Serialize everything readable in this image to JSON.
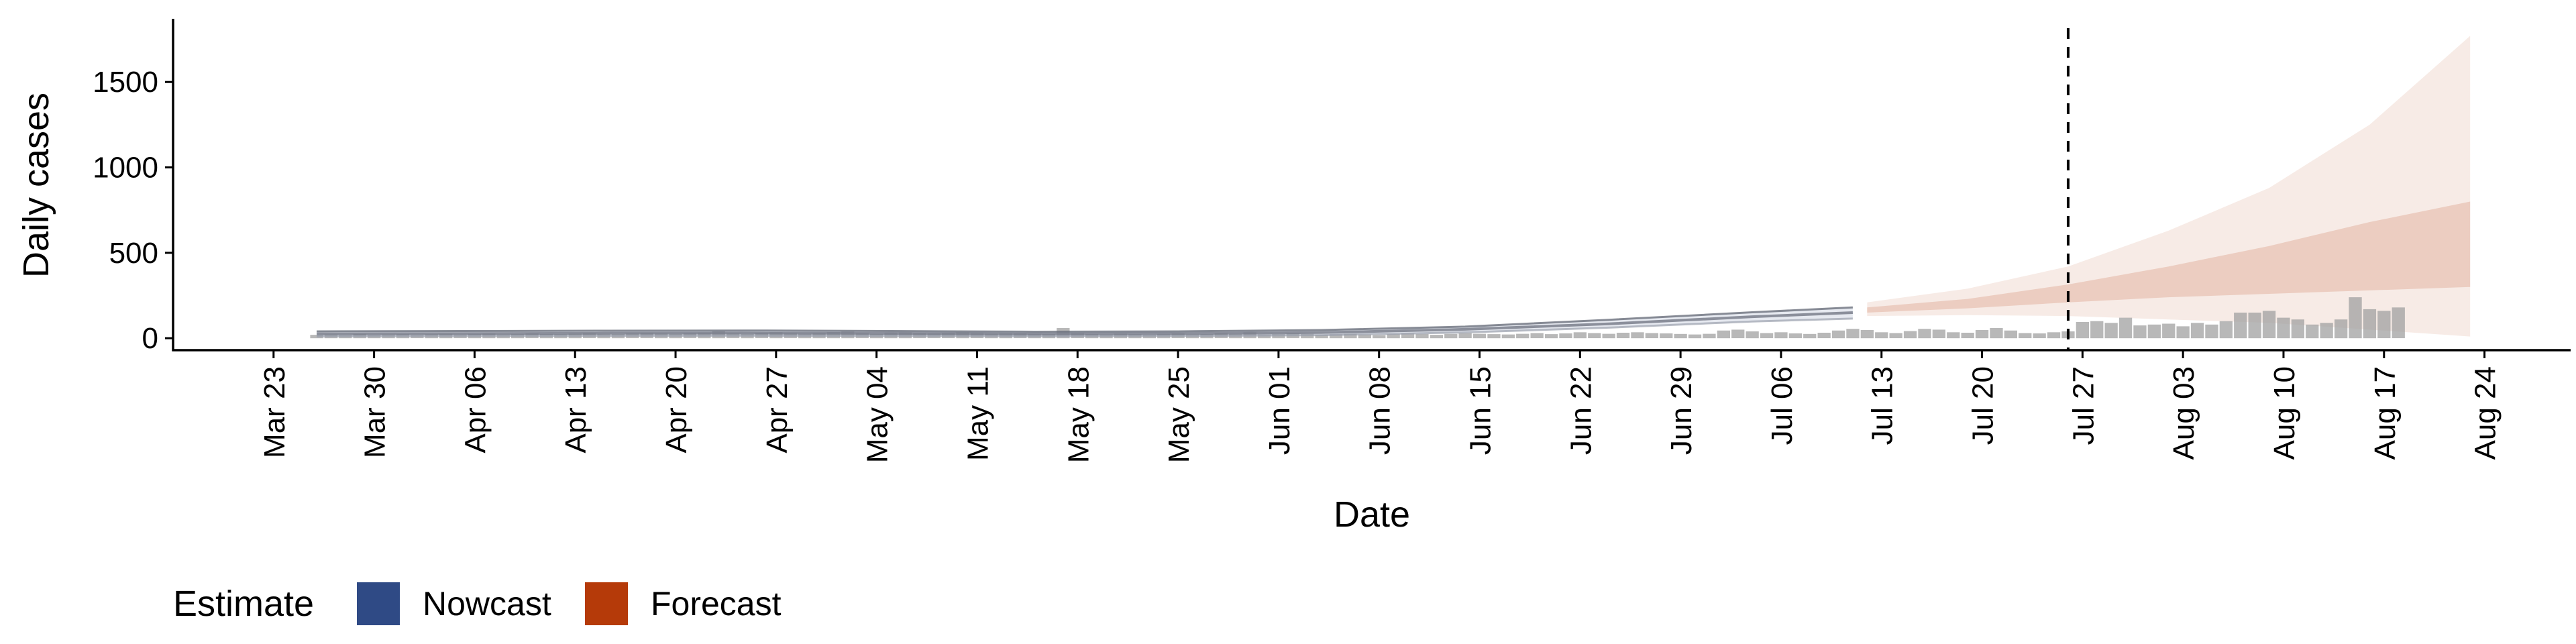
{
  "chart_data": {
    "type": "bar",
    "xlabel": "Date",
    "ylabel": "Daily cases",
    "ylim": [
      -70,
      1870
    ],
    "yticks": [
      0,
      500,
      1000,
      1500
    ],
    "xlim": [
      "2020-03-16",
      "2020-08-30"
    ],
    "xticks": [
      "2020-03-23",
      "2020-03-30",
      "2020-04-06",
      "2020-04-13",
      "2020-04-20",
      "2020-04-27",
      "2020-05-04",
      "2020-05-11",
      "2020-05-18",
      "2020-05-25",
      "2020-06-01",
      "2020-06-08",
      "2020-06-15",
      "2020-06-22",
      "2020-06-29",
      "2020-07-06",
      "2020-07-13",
      "2020-07-20",
      "2020-07-27",
      "2020-08-03",
      "2020-08-10",
      "2020-08-17",
      "2020-08-24"
    ],
    "xtick_labels": [
      "Mar 23",
      "Mar 30",
      "Apr 06",
      "Apr 13",
      "Apr 20",
      "Apr 27",
      "May 04",
      "May 11",
      "May 18",
      "May 25",
      "Jun 01",
      "Jun 08",
      "Jun 15",
      "Jun 22",
      "Jun 29",
      "Jul 06",
      "Jul 13",
      "Jul 20",
      "Jul 27",
      "Aug 03",
      "Aug 10",
      "Aug 17",
      "Aug 24"
    ],
    "forecast_date": "2020-07-26",
    "grid": false,
    "legend_position": "bottom-left",
    "observed": {
      "start_date": "2020-03-26",
      "values": [
        20,
        22,
        18,
        25,
        20,
        22,
        24,
        19,
        23,
        26,
        21,
        25,
        27,
        22,
        24,
        28,
        25,
        23,
        27,
        30,
        26,
        24,
        28,
        32,
        29,
        26,
        30,
        33,
        40,
        28,
        25,
        32,
        35,
        30,
        27,
        31,
        36,
        38,
        30,
        26,
        33,
        35,
        30,
        28,
        32,
        34,
        30,
        27,
        29,
        28,
        26,
        24,
        60,
        30,
        25,
        22,
        27,
        24,
        20,
        26,
        28,
        22,
        24,
        30,
        26,
        35,
        22,
        24,
        28,
        25,
        20,
        23,
        26,
        22,
        18,
        24,
        28,
        25,
        20,
        25,
        30,
        26,
        24,
        22,
        26,
        30,
        24,
        28,
        35,
        30,
        26,
        32,
        35,
        30,
        28,
        25,
        22,
        26,
        45,
        50,
        40,
        30,
        35,
        28,
        25,
        32,
        45,
        55,
        48,
        35,
        30,
        42,
        55,
        50,
        35,
        32,
        48,
        60,
        45,
        30,
        28,
        35,
        40,
        95,
        100,
        90,
        120,
        75,
        80,
        85,
        70,
        90,
        80,
        100,
        150,
        150,
        160,
        120,
        110,
        80,
        90,
        110,
        240,
        170,
        160,
        180
      ]
    },
    "series": [
      {
        "name": "Nowcast",
        "color": "#2f4a85",
        "dates": [
          "2020-03-26",
          "2020-04-05",
          "2020-04-15",
          "2020-04-25",
          "2020-05-05",
          "2020-05-15",
          "2020-05-25",
          "2020-06-04",
          "2020-06-14",
          "2020-06-24",
          "2020-07-04",
          "2020-07-11"
        ],
        "median": [
          25,
          27,
          29,
          30,
          28,
          25,
          27,
          33,
          52,
          84,
          126,
          150
        ],
        "lower90": [
          10,
          12,
          14,
          15,
          13,
          11,
          13,
          18,
          34,
          62,
          98,
          115
        ],
        "upper90": [
          40,
          42,
          44,
          45,
          42,
          38,
          40,
          48,
          68,
          108,
          152,
          180
        ]
      },
      {
        "name": "Forecast",
        "color": "#b53a09",
        "dates": [
          "2020-07-12",
          "2020-07-19",
          "2020-07-26",
          "2020-08-02",
          "2020-08-09",
          "2020-08-16",
          "2020-08-23"
        ],
        "median": [
          165,
          205,
          260,
          330,
          420,
          560,
          720
        ],
        "lower50": [
          150,
          175,
          210,
          240,
          260,
          280,
          300
        ],
        "upper50": [
          180,
          230,
          315,
          420,
          540,
          680,
          800
        ],
        "lower90": [
          130,
          135,
          130,
          110,
          90,
          50,
          10
        ],
        "upper90": [
          210,
          290,
          420,
          630,
          880,
          1250,
          1770
        ]
      }
    ],
    "legend": {
      "title": "Estimate",
      "items": [
        {
          "label": "Nowcast",
          "color": "#2f4a85"
        },
        {
          "label": "Forecast",
          "color": "#b53a09"
        }
      ]
    }
  }
}
